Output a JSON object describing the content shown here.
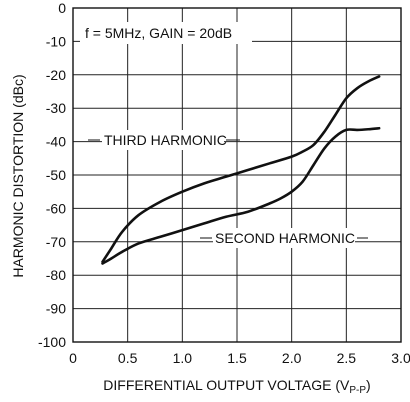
{
  "chart_data": {
    "type": "line",
    "annotation": "f = 5MHz, GAIN = 20dB",
    "xlabel": "DIFFERENTIAL OUTPUT VOLTAGE (V",
    "xlabel_sub": "P-P",
    "xlabel_close": ")",
    "ylabel": "HARMONIC DISTORTION (dBc)",
    "xlim": [
      0,
      3.0
    ],
    "ylim": [
      -100,
      0
    ],
    "x_ticks": [
      "0",
      "0.5",
      "1.0",
      "1.5",
      "2.0",
      "2.5",
      "3.0"
    ],
    "x_tick_values": [
      0,
      0.5,
      1.0,
      1.5,
      2.0,
      2.5,
      3.0
    ],
    "y_ticks": [
      "0",
      "-10",
      "-20",
      "-30",
      "-40",
      "-50",
      "-60",
      "-70",
      "-80",
      "-90",
      "-100"
    ],
    "y_tick_values": [
      0,
      -10,
      -20,
      -30,
      -40,
      -50,
      -60,
      -70,
      -80,
      -90,
      -100
    ],
    "grid": true,
    "series": [
      {
        "name": "THIRD HARMONIC",
        "x": [
          0.27,
          0.35,
          0.45,
          0.6,
          0.8,
          1.0,
          1.2,
          1.4,
          1.6,
          1.8,
          2.0,
          2.1,
          2.2,
          2.3,
          2.4,
          2.5,
          2.6,
          2.7,
          2.8
        ],
        "y": [
          -76,
          -72,
          -67,
          -62,
          -58,
          -55,
          -52.5,
          -50.5,
          -48.5,
          -46.5,
          -44.5,
          -43,
          -41,
          -37,
          -32,
          -27,
          -24,
          -22,
          -20.5
        ]
      },
      {
        "name": "SECOND HARMONIC",
        "x": [
          0.27,
          0.35,
          0.45,
          0.6,
          0.8,
          1.0,
          1.2,
          1.4,
          1.6,
          1.8,
          1.9,
          2.0,
          2.1,
          2.2,
          2.3,
          2.4,
          2.5,
          2.6,
          2.7,
          2.8
        ],
        "y": [
          -76.5,
          -75,
          -73,
          -70.5,
          -68.5,
          -66.5,
          -64.5,
          -62.5,
          -61,
          -58.5,
          -57,
          -55,
          -52,
          -47,
          -42,
          -38.5,
          -36.5,
          -36.5,
          -36.3,
          -36
        ]
      }
    ]
  }
}
